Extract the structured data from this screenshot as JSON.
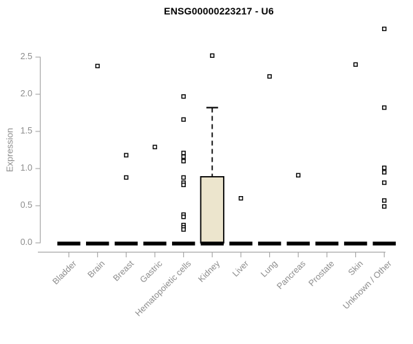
{
  "page": {
    "background": "#ffffff"
  },
  "chart_data": {
    "type": "boxplot",
    "title": "ENSG00000223217 - U6",
    "ylabel": "Expression",
    "xlabel": "",
    "ylim": [
      0,
      2.95
    ],
    "yticks": [
      "0.0",
      "0.5",
      "1.0",
      "1.5",
      "2.0",
      "2.5"
    ],
    "grid": false,
    "legend": "none",
    "categories": [
      "Bladder",
      "Brain",
      "Breast",
      "Gastric",
      "Hematopoietic cells",
      "Kidney",
      "Liver",
      "Lung",
      "Pancreas",
      "Prostate",
      "Skin",
      "Unknown / Other"
    ],
    "series": [
      {
        "category": "Bladder",
        "median": 0,
        "q1": 0,
        "q3": 0,
        "whisker_low": 0,
        "whisker_high": 0,
        "outliers": []
      },
      {
        "category": "Brain",
        "median": 0,
        "q1": 0,
        "q3": 0,
        "whisker_low": 0,
        "whisker_high": 0,
        "outliers": [
          2.38
        ]
      },
      {
        "category": "Breast",
        "median": 0,
        "q1": 0,
        "q3": 0,
        "whisker_low": 0,
        "whisker_high": 0,
        "outliers": [
          1.18,
          0.88
        ]
      },
      {
        "category": "Gastric",
        "median": 0,
        "q1": 0,
        "q3": 0,
        "whisker_low": 0,
        "whisker_high": 0,
        "outliers": [
          1.29
        ]
      },
      {
        "category": "Hematopoietic cells",
        "median": 0,
        "q1": 0,
        "q3": 0,
        "whisker_low": 0,
        "whisker_high": 0,
        "outliers": [
          1.97,
          1.66,
          1.21,
          1.16,
          1.1,
          0.88,
          0.81,
          0.78,
          0.38,
          0.35,
          0.24,
          0.21,
          0.18
        ]
      },
      {
        "category": "Kidney",
        "median": 0,
        "q1": 0,
        "q3": 0.89,
        "whisker_low": 0,
        "whisker_high": 1.82,
        "outliers": [
          2.52
        ]
      },
      {
        "category": "Liver",
        "median": 0,
        "q1": 0,
        "q3": 0,
        "whisker_low": 0,
        "whisker_high": 0,
        "outliers": [
          0.6
        ]
      },
      {
        "category": "Lung",
        "median": 0,
        "q1": 0,
        "q3": 0,
        "whisker_low": 0,
        "whisker_high": 0,
        "outliers": [
          2.24
        ]
      },
      {
        "category": "Pancreas",
        "median": 0,
        "q1": 0,
        "q3": 0,
        "whisker_low": 0,
        "whisker_high": 0,
        "outliers": [
          0.91
        ]
      },
      {
        "category": "Prostate",
        "median": 0,
        "q1": 0,
        "q3": 0,
        "whisker_low": 0,
        "whisker_high": 0,
        "outliers": []
      },
      {
        "category": "Skin",
        "median": 0,
        "q1": 0,
        "q3": 0,
        "whisker_low": 0,
        "whisker_high": 0,
        "outliers": [
          2.4
        ]
      },
      {
        "category": "Unknown / Other",
        "median": 0,
        "q1": 0,
        "q3": 0,
        "whisker_low": 0,
        "whisker_high": 0,
        "outliers": [
          2.88,
          1.82,
          1.01,
          0.95,
          0.81,
          0.57,
          0.49
        ]
      }
    ],
    "colors": {
      "box_fill": "#ece5cd",
      "box_border": "#000000",
      "median": "#000000",
      "whisker": "#000000",
      "point_border": "#000000",
      "point_fill": "#ffffff",
      "axis": "#a9a9a9",
      "text": "#8c8c8c",
      "title": "#000000",
      "background": "#ffffff"
    }
  }
}
